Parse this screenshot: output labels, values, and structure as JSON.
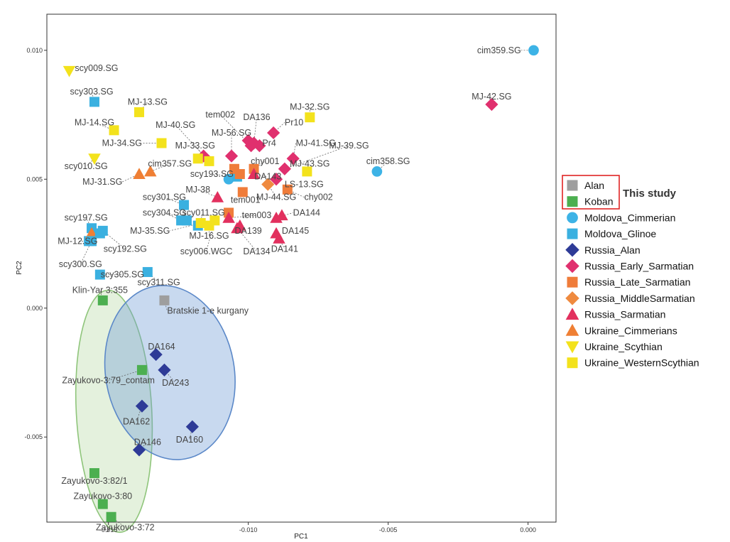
{
  "chart_data": {
    "type": "scatter",
    "xlabel": "PC1",
    "ylabel": "PC2",
    "xlim": [
      -0.0172,
      0.001
    ],
    "ylim": [
      -0.0083,
      0.0114
    ],
    "xticks": [
      {
        "v": -0.015,
        "label": "-0.015"
      },
      {
        "v": -0.01,
        "label": "-0.010"
      },
      {
        "v": -0.005,
        "label": "-0.005"
      },
      {
        "v": 0.0,
        "label": "0.000"
      }
    ],
    "yticks": [
      {
        "v": 0.01,
        "label": "0.010"
      },
      {
        "v": 0.005,
        "label": "0.005"
      },
      {
        "v": 0.0,
        "label": "0.000"
      },
      {
        "v": -0.005,
        "label": "-0.005"
      }
    ],
    "groups": {
      "Alan": {
        "color": "#9e9e9e",
        "shape": "square"
      },
      "Koban": {
        "color": "#4caf50",
        "shape": "square"
      },
      "Moldova_Cimmerian": {
        "color": "#3db3e6",
        "shape": "circle"
      },
      "Moldova_Glinoe": {
        "color": "#3ab0e0",
        "shape": "square"
      },
      "Russia_Alan": {
        "color": "#2e3b97",
        "shape": "diamond"
      },
      "Russia_Early_Sarmatian": {
        "color": "#e0306e",
        "shape": "diamond"
      },
      "Russia_Late_Sarmatian": {
        "color": "#ef7c3a",
        "shape": "square"
      },
      "Russia_MiddleSarmatian": {
        "color": "#ef8a3f",
        "shape": "diamond"
      },
      "Russia_Sarmatian": {
        "color": "#e2305e",
        "shape": "triangle"
      },
      "Ukraine_Cimmerians": {
        "color": "#ef7f34",
        "shape": "triangle"
      },
      "Ukraine_Scythian": {
        "color": "#f3e21c",
        "shape": "triangle-down"
      },
      "Ukraine_WesternScythian": {
        "color": "#f3e21c",
        "shape": "square"
      }
    },
    "points": [
      {
        "g": "Moldova_Cimmerian",
        "x": 0.0002,
        "y": 0.01,
        "label": "cim359.SG",
        "lx": -0.00025,
        "ly": 0.01,
        "anchor": "end"
      },
      {
        "g": "Russia_Early_Sarmatian",
        "x": -0.0013,
        "y": 0.0079,
        "label": "MJ-42.SG",
        "lx": -0.0013,
        "ly": 0.0082,
        "anchor": "middle"
      },
      {
        "g": "Ukraine_Scythian",
        "x": -0.0164,
        "y": 0.0092,
        "label": "scy009.SG",
        "lx": -0.0162,
        "ly": 0.0093,
        "anchor": "start"
      },
      {
        "g": "Moldova_Glinoe",
        "x": -0.0155,
        "y": 0.008,
        "label": "scy303.SG",
        "lx": -0.0156,
        "ly": 0.0084,
        "anchor": "middle"
      },
      {
        "g": "Ukraine_WesternScythian",
        "x": -0.0139,
        "y": 0.0076,
        "label": "MJ-13.SG",
        "lx": -0.0136,
        "ly": 0.008,
        "anchor": "middle"
      },
      {
        "g": "Ukraine_WesternScythian",
        "x": -0.0148,
        "y": 0.0069,
        "label": "MJ-14.SG",
        "lx": -0.0155,
        "ly": 0.0072,
        "anchor": "middle"
      },
      {
        "g": "Ukraine_WesternScythian",
        "x": -0.0131,
        "y": 0.0064,
        "label": "MJ-34.SG",
        "lx": -0.0138,
        "ly": 0.0064,
        "anchor": "end"
      },
      {
        "g": "Ukraine_WesternScythian",
        "x": -0.0078,
        "y": 0.0074,
        "label": "MJ-32.SG",
        "lx": -0.0078,
        "ly": 0.0078,
        "anchor": "middle"
      },
      {
        "g": "Ukraine_Scythian",
        "x": -0.0155,
        "y": 0.0058,
        "label": "scy010.SG",
        "lx": -0.0158,
        "ly": 0.0055,
        "anchor": "middle"
      },
      {
        "g": "Ukraine_Cimmerians",
        "x": -0.0139,
        "y": 0.0052,
        "label": "MJ-31.SG",
        "lx": -0.0145,
        "ly": 0.0049,
        "anchor": "end"
      },
      {
        "g": "Russia_Early_Sarmatian",
        "x": -0.0116,
        "y": 0.0059,
        "label": "MJ-33.SG",
        "lx": -0.0119,
        "ly": 0.0063,
        "anchor": "middle"
      },
      {
        "g": "Russia_Early_Sarmatian",
        "x": -0.0106,
        "y": 0.0059,
        "label": "MJ-56.SG",
        "lx": -0.0106,
        "ly": 0.0068,
        "anchor": "middle"
      },
      {
        "g": "Russia_Early_Sarmatian",
        "x": -0.0099,
        "y": 0.0063,
        "label": "tem002",
        "lx": -0.011,
        "ly": 0.0075,
        "anchor": "middle"
      },
      {
        "g": "Russia_Early_Sarmatian",
        "x": -0.0098,
        "y": 0.0064,
        "label": "DA136",
        "lx": -0.0097,
        "ly": 0.0074,
        "anchor": "middle"
      },
      {
        "g": "Russia_Early_Sarmatian",
        "x": -0.0091,
        "y": 0.0068,
        "label": "Pr10",
        "lx": -0.0087,
        "ly": 0.0072,
        "anchor": "start"
      },
      {
        "g": "Russia_Early_Sarmatian",
        "x": -0.0096,
        "y": 0.0063,
        "label": "Pr4",
        "lx": -0.0095,
        "ly": 0.0064,
        "anchor": "start"
      },
      {
        "g": "Russia_Early_Sarmatian",
        "x": -0.0084,
        "y": 0.0058,
        "label": "MJ-41.SG",
        "lx": -0.0083,
        "ly": 0.0064,
        "anchor": "start"
      },
      {
        "g": "Russia_Early_Sarmatian",
        "x": -0.0087,
        "y": 0.0054,
        "label": "MJ-39.SG",
        "lx": -0.0064,
        "ly": 0.0063,
        "anchor": "middle"
      },
      {
        "g": "Russia_Early_Sarmatian",
        "x": -0.009,
        "y": 0.005,
        "label": "LS-13.SG",
        "lx": -0.0087,
        "ly": 0.0048,
        "anchor": "start"
      },
      {
        "g": "Ukraine_WesternScythian",
        "x": -0.0079,
        "y": 0.0053,
        "label": "MJ-43.SG",
        "lx": -0.0078,
        "ly": 0.0056,
        "anchor": "middle"
      },
      {
        "g": "Ukraine_WesternScythian",
        "x": -0.0114,
        "y": 0.0057,
        "label": "MJ-40.SG",
        "lx": -0.0126,
        "ly": 0.0071,
        "anchor": "middle"
      },
      {
        "g": "Moldova_Cimmerian",
        "x": -0.0054,
        "y": 0.0053,
        "label": "cim358.SG",
        "lx": -0.005,
        "ly": 0.0057,
        "anchor": "middle"
      },
      {
        "g": "Moldova_Cimmerian",
        "x": -0.0107,
        "y": 0.005,
        "label": "",
        "lx": 0,
        "ly": 0,
        "anchor": "middle"
      },
      {
        "g": "Moldova_Glinoe",
        "x": -0.0104,
        "y": 0.0051,
        "label": "scy193.SG",
        "lx": -0.0113,
        "ly": 0.0052,
        "anchor": "middle"
      },
      {
        "g": "Russia_Late_Sarmatian",
        "x": -0.0105,
        "y": 0.0054,
        "label": "",
        "lx": 0,
        "ly": 0,
        "anchor": "middle"
      },
      {
        "g": "Russia_Late_Sarmatian",
        "x": -0.0098,
        "y": 0.0054,
        "label": "chy001",
        "lx": -0.0094,
        "ly": 0.0057,
        "anchor": "middle"
      },
      {
        "g": "Russia_Sarmatian",
        "x": -0.0098,
        "y": 0.0052,
        "label": "DA143",
        "lx": -0.0093,
        "ly": 0.0051,
        "anchor": "middle"
      },
      {
        "g": "Russia_Late_Sarmatian",
        "x": -0.0086,
        "y": 0.0046,
        "label": "chy002",
        "lx": -0.008,
        "ly": 0.0043,
        "anchor": "start"
      },
      {
        "g": "Russia_MiddleSarmatian",
        "x": -0.0093,
        "y": 0.0048,
        "label": "MJ-44.SG",
        "lx": -0.009,
        "ly": 0.0043,
        "anchor": "middle"
      },
      {
        "g": "Russia_Late_Sarmatian",
        "x": -0.0102,
        "y": 0.0045,
        "label": "tem001",
        "lx": -0.0101,
        "ly": 0.0042,
        "anchor": "middle"
      },
      {
        "g": "Ukraine_Cimmerians",
        "x": -0.0135,
        "y": 0.0053,
        "label": "cim357.SG",
        "lx": -0.0128,
        "ly": 0.0056,
        "anchor": "middle"
      },
      {
        "g": "Russia_Sarmatian",
        "x": -0.0111,
        "y": 0.0043,
        "label": "MJ-38",
        "lx": -0.0118,
        "ly": 0.0046,
        "anchor": "middle"
      },
      {
        "g": "Moldova_Glinoe",
        "x": -0.0123,
        "y": 0.004,
        "label": "scy301.SG",
        "lx": -0.013,
        "ly": 0.0043,
        "anchor": "middle"
      },
      {
        "g": "Moldova_Glinoe",
        "x": -0.0124,
        "y": 0.0034,
        "label": "scy304.SG",
        "lx": -0.013,
        "ly": 0.0037,
        "anchor": "middle"
      },
      {
        "g": "Moldova_Glinoe",
        "x": -0.0118,
        "y": 0.0032,
        "label": "scy011.SG",
        "lx": -0.0116,
        "ly": 0.0037,
        "anchor": "middle"
      },
      {
        "g": "Russia_Late_Sarmatian",
        "x": -0.0107,
        "y": 0.0037,
        "label": "",
        "lx": 0,
        "ly": 0,
        "anchor": "middle"
      },
      {
        "g": "Russia_Sarmatian",
        "x": -0.0107,
        "y": 0.0035,
        "label": "tem003",
        "lx": -0.0097,
        "ly": 0.0036,
        "anchor": "middle"
      },
      {
        "g": "Russia_Sarmatian",
        "x": -0.009,
        "y": 0.0035,
        "label": "DA144",
        "lx": -0.0084,
        "ly": 0.0037,
        "anchor": "start"
      },
      {
        "g": "Russia_Sarmatian",
        "x": -0.0088,
        "y": 0.0036,
        "label": "",
        "lx": 0,
        "ly": 0,
        "anchor": "middle"
      },
      {
        "g": "Russia_Sarmatian",
        "x": -0.009,
        "y": 0.0029,
        "label": "DA145",
        "lx": -0.0088,
        "ly": 0.003,
        "anchor": "start"
      },
      {
        "g": "Russia_Sarmatian",
        "x": -0.0103,
        "y": 0.0032,
        "label": "DA139",
        "lx": -0.01,
        "ly": 0.003,
        "anchor": "middle"
      },
      {
        "g": "Russia_Sarmatian",
        "x": -0.0089,
        "y": 0.0027,
        "label": "DA141",
        "lx": -0.0087,
        "ly": 0.0023,
        "anchor": "middle"
      },
      {
        "g": "Russia_Sarmatian",
        "x": -0.0104,
        "y": 0.0031,
        "label": "DA134",
        "lx": -0.0097,
        "ly": 0.0022,
        "anchor": "middle"
      },
      {
        "g": "Ukraine_WesternScythian",
        "x": -0.0117,
        "y": 0.0033,
        "label": "MJ-35.SG",
        "lx": -0.0128,
        "ly": 0.003,
        "anchor": "end"
      },
      {
        "g": "Ukraine_WesternScythian",
        "x": -0.0114,
        "y": 0.0032,
        "label": "MJ-16.SG",
        "lx": -0.0114,
        "ly": 0.0028,
        "anchor": "middle"
      },
      {
        "g": "Ukraine_WesternScythian",
        "x": -0.0112,
        "y": 0.0034,
        "label": "scy006.WGC",
        "lx": -0.0115,
        "ly": 0.0022,
        "anchor": "middle"
      },
      {
        "g": "Moldova_Glinoe",
        "x": -0.0156,
        "y": 0.0031,
        "label": "scy197.SG",
        "lx": -0.0158,
        "ly": 0.0035,
        "anchor": "middle"
      },
      {
        "g": "Moldova_Glinoe",
        "x": -0.0152,
        "y": 0.003,
        "label": "scy192.SG",
        "lx": -0.0144,
        "ly": 0.0023,
        "anchor": "middle"
      },
      {
        "g": "Moldova_Glinoe",
        "x": -0.0157,
        "y": 0.0026,
        "label": "MJ-12.SG",
        "lx": -0.0161,
        "ly": 0.0026,
        "anchor": "middle"
      },
      {
        "g": "Ukraine_Cimmerians",
        "x": -0.0156,
        "y": 0.0029,
        "label": "",
        "lx": 0,
        "ly": 0,
        "anchor": "middle"
      },
      {
        "g": "Moldova_Glinoe",
        "x": -0.0153,
        "y": 0.0013,
        "label": "scy305.SG",
        "lx": -0.0145,
        "ly": 0.0013,
        "anchor": "middle"
      },
      {
        "g": "Moldova_Glinoe",
        "x": -0.0136,
        "y": 0.0014,
        "label": "scy311.SG",
        "lx": -0.0132,
        "ly": 0.001,
        "anchor": "middle"
      },
      {
        "g": "Alan",
        "x": -0.013,
        "y": 0.0003,
        "label": "Bratskie 1-e kurgany",
        "lx": -0.0129,
        "ly": -0.0001,
        "anchor": "start"
      },
      {
        "g": "Koban",
        "x": -0.0152,
        "y": 0.0003,
        "label": "Klin-Yar 3:355",
        "lx": -0.0153,
        "ly": 0.0007,
        "anchor": "middle"
      },
      {
        "g": "Koban",
        "x": -0.0138,
        "y": -0.0024,
        "label": "Zayukovo-3:79_contam",
        "lx": -0.015,
        "ly": -0.0028,
        "anchor": "middle"
      },
      {
        "g": "Koban",
        "x": -0.0155,
        "y": -0.0064,
        "label": "Zayukovo-3:82/1",
        "lx": -0.0155,
        "ly": -0.0067,
        "anchor": "middle"
      },
      {
        "g": "Koban",
        "x": -0.0152,
        "y": -0.0076,
        "label": "Zayukovo-3:80",
        "lx": -0.0152,
        "ly": -0.0073,
        "anchor": "middle"
      },
      {
        "g": "Koban",
        "x": -0.0149,
        "y": -0.0081,
        "label": "Zayukovo-3:72",
        "lx": -0.0144,
        "ly": -0.0085,
        "anchor": "middle"
      },
      {
        "g": "Russia_Alan",
        "x": -0.0133,
        "y": -0.0018,
        "label": "DA164",
        "lx": -0.0131,
        "ly": -0.0015,
        "anchor": "middle"
      },
      {
        "g": "Russia_Alan",
        "x": -0.013,
        "y": -0.0024,
        "label": "DA243",
        "lx": -0.0126,
        "ly": -0.0029,
        "anchor": "middle"
      },
      {
        "g": "Russia_Alan",
        "x": -0.0138,
        "y": -0.0038,
        "label": "DA162",
        "lx": -0.014,
        "ly": -0.0044,
        "anchor": "middle"
      },
      {
        "g": "Russia_Alan",
        "x": -0.012,
        "y": -0.0046,
        "label": "DA160",
        "lx": -0.0121,
        "ly": -0.0051,
        "anchor": "middle"
      },
      {
        "g": "Russia_Alan",
        "x": -0.0139,
        "y": -0.0055,
        "label": "DA146",
        "lx": -0.0136,
        "ly": -0.0052,
        "anchor": "middle"
      },
      {
        "g": "Russia_Late_Sarmatian",
        "x": -0.0103,
        "y": 0.0052,
        "label": "",
        "lx": 0,
        "ly": 0,
        "anchor": "middle"
      },
      {
        "g": "Ukraine_WesternScythian",
        "x": -0.0118,
        "y": 0.0058,
        "label": "",
        "lx": 0,
        "ly": 0,
        "anchor": "middle"
      },
      {
        "g": "Russia_Early_Sarmatian",
        "x": -0.01,
        "y": 0.0065,
        "label": "",
        "lx": 0,
        "ly": 0,
        "anchor": "middle"
      },
      {
        "g": "Moldova_Glinoe",
        "x": -0.0122,
        "y": 0.0034,
        "label": "",
        "lx": 0,
        "ly": 0,
        "anchor": "middle"
      },
      {
        "g": "Moldova_Glinoe",
        "x": -0.0153,
        "y": 0.0029,
        "label": "",
        "lx": 0,
        "ly": 0,
        "anchor": "middle"
      },
      {
        "g": "Moldova_Glinoe",
        "x": -0.0156,
        "y": 0.0026,
        "label": "scy300.SG",
        "lx": -0.016,
        "ly": 0.0017,
        "anchor": "middle"
      }
    ],
    "ellipses": [
      {
        "name": "Koban",
        "cx": -0.0148,
        "cy": -0.004,
        "rx": 0.00135,
        "ry": 0.0047,
        "angle": -3,
        "fill": "#b7d9a6",
        "stroke": "#8fc57b"
      },
      {
        "name": "Alan",
        "cx": -0.0128,
        "cy": -0.0025,
        "rx": 0.0023,
        "ry": 0.0034,
        "angle": -10,
        "fill": "#6f9bd6",
        "stroke": "#5b88c8"
      }
    ],
    "legend": {
      "items": [
        {
          "g": "Alan",
          "label": "Alan"
        },
        {
          "g": "Koban",
          "label": "Koban"
        },
        {
          "g": "Moldova_Cimmerian",
          "label": "Moldova_Cimmerian"
        },
        {
          "g": "Moldova_Glinoe",
          "label": "Moldova_Glinoe"
        },
        {
          "g": "Russia_Alan",
          "label": "Russia_Alan"
        },
        {
          "g": "Russia_Early_Sarmatian",
          "label": "Russia_Early_Sarmatian"
        },
        {
          "g": "Russia_Late_Sarmatian",
          "label": "Russia_Late_Sarmatian"
        },
        {
          "g": "Russia_MiddleSarmatian",
          "label": "Russia_MiddleSarmatian"
        },
        {
          "g": "Russia_Sarmatian",
          "label": "Russia_Sarmatian"
        },
        {
          "g": "Ukraine_Cimmerians",
          "label": "Ukraine_Cimmerians"
        },
        {
          "g": "Ukraine_Scythian",
          "label": "Ukraine_Scythian"
        },
        {
          "g": "Ukraine_WesternScythian",
          "label": "Ukraine_WesternScythian"
        }
      ],
      "study_note": "This study",
      "placement": "right"
    }
  }
}
